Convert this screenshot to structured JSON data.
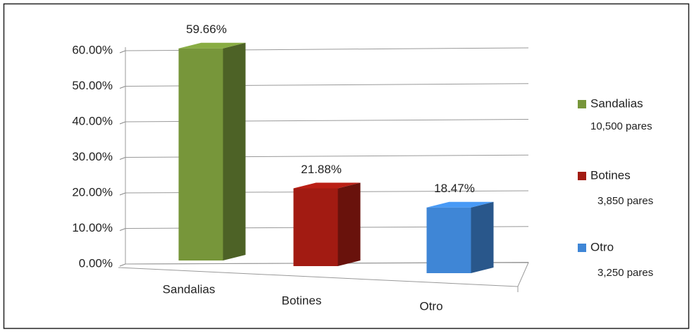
{
  "chart_data": {
    "type": "bar3d",
    "categories": [
      "Sandalias",
      "Botines",
      "Otro"
    ],
    "values": [
      59.66,
      21.88,
      18.47
    ],
    "value_labels": [
      "59.66%",
      "21.88%",
      "18.47%"
    ],
    "colors": [
      "#77963a",
      "#a21b12",
      "#3f86d6"
    ],
    "legend_notes": [
      "10,500 pares",
      "3,850 pares",
      "3,250 pares"
    ],
    "ylim": [
      0,
      60
    ],
    "yticks": [
      {
        "value": 0,
        "label": "0.00%"
      },
      {
        "value": 10,
        "label": "10.00%"
      },
      {
        "value": 20,
        "label": "20.00%"
      },
      {
        "value": 30,
        "label": "30.00%"
      },
      {
        "value": 40,
        "label": "40.00%"
      },
      {
        "value": 50,
        "label": "50.00%"
      },
      {
        "value": 60,
        "label": "60.00%"
      }
    ],
    "grid": true,
    "legend": "right"
  }
}
